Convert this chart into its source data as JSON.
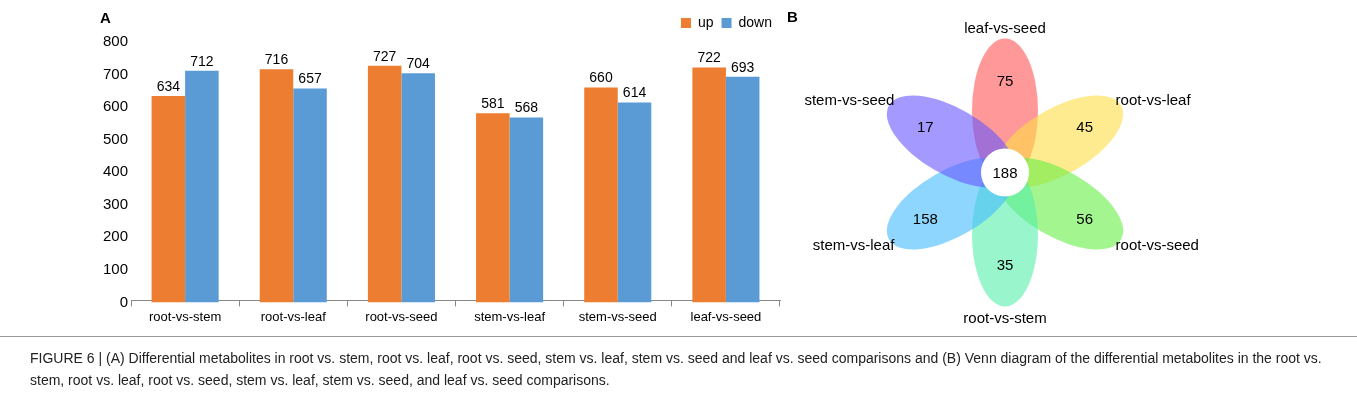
{
  "chart_data": [
    {
      "type": "bar",
      "title": "A",
      "categories": [
        "root-vs-stem",
        "root-vs-leaf",
        "root-vs-seed",
        "stem-vs-leaf",
        "stem-vs-seed",
        "leaf-vs-seed"
      ],
      "series": [
        {
          "name": "up",
          "color": "#ed7d31",
          "values": [
            634,
            716,
            727,
            581,
            660,
            722
          ]
        },
        {
          "name": "down",
          "color": "#5b9bd5",
          "values": [
            712,
            657,
            704,
            568,
            614,
            693
          ]
        }
      ],
      "ylim": [
        0,
        800
      ],
      "yticks": [
        0,
        100,
        200,
        300,
        400,
        500,
        600,
        700,
        800
      ],
      "grid": false,
      "legend": "top right",
      "data_labels": true,
      "annotations": [
        "FIGURE 6 | (A) Differential metabolites in root vs. stem, root vs. leaf, root vs. seed, stem vs. leaf, stem vs. seed and leaf vs. seed comparisons and (B) Venn diagram of the differential metabolites in the root vs. stem, root vs. leaf, root vs. seed, stem vs. leaf, stem vs. seed, and leaf vs. seed comparisons."
      ]
    },
    {
      "type": "other",
      "title": "B",
      "categories": [
        "leaf-vs-seed",
        "root-vs-leaf",
        "root-vs-seed",
        "root-vs-stem",
        "stem-vs-leaf",
        "stem-vs-seed"
      ],
      "values": [
        75,
        45,
        56,
        35,
        158,
        17
      ],
      "colors": [
        "#ff5555",
        "#ffdd44",
        "#66ee44",
        "#55eeaa",
        "#44bbff",
        "#6655ff"
      ],
      "data_labels": true,
      "annotations": [
        "188"
      ]
    }
  ]
}
